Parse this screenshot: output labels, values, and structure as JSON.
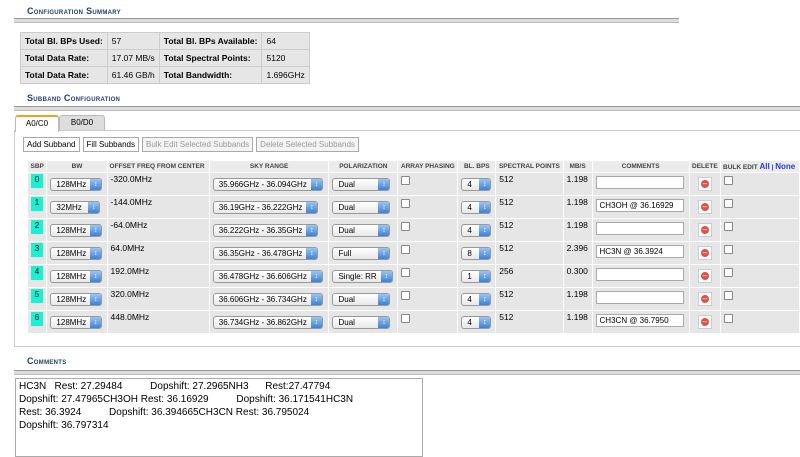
{
  "summary": {
    "title": "Configuration Summary",
    "rows": [
      [
        "Total Bl. BPs Used:",
        "57",
        "Total Bl. BPs Available:",
        "64"
      ],
      [
        "Total Data Rate:",
        "17.07 MB/s",
        "Total Spectral Points:",
        "5120"
      ],
      [
        "Total Data Rate:",
        "61.46 GB/h",
        "Total Bandwidth:",
        "1.696GHz"
      ]
    ]
  },
  "subband": {
    "title": "Subband Configuration",
    "tabs": [
      "A0/C0",
      "B0/D0"
    ],
    "active_tab": "A0/C0",
    "buttons": {
      "add": "Add Subband",
      "fill": "Fill Subbands",
      "bulk": "Bulk Edit Selected Subbands",
      "delete": "Delete Selected Subbands"
    },
    "headers": {
      "sbp": "SBP",
      "bw": "BW",
      "offset": "OFFSET FREQ FROM CENTER",
      "sky": "SKY RANGE",
      "pol": "POLARIZATION",
      "phasing": "ARRAY PHASING",
      "bps": "BL. BPS",
      "points": "SPECTRAL POINTS",
      "mbs": "MB/S",
      "comments": "COMMENTS",
      "delete": "DELETE",
      "bulk": "BULK EDIT",
      "all": "All",
      "sep": "|",
      "none": "None"
    },
    "rows": [
      {
        "sbp": "0",
        "bw": "128MHz",
        "offset": "-320.0MHz",
        "sky": "35.966GHz - 36.094GHz",
        "pol": "Dual",
        "bps": "4",
        "points": "512",
        "mbs": "1.198",
        "comment": ""
      },
      {
        "sbp": "1",
        "bw": "32MHz",
        "offset": "-144.0MHz",
        "sky": "36.19GHz - 36.222GHz",
        "pol": "Dual",
        "bps": "4",
        "points": "512",
        "mbs": "1.198",
        "comment": "CH3OH @ 36.16929"
      },
      {
        "sbp": "2",
        "bw": "128MHz",
        "offset": "-64.0MHz",
        "sky": "36.222GHz - 36.35GHz",
        "pol": "Dual",
        "bps": "4",
        "points": "512",
        "mbs": "1.198",
        "comment": ""
      },
      {
        "sbp": "3",
        "bw": "128MHz",
        "offset": "64.0MHz",
        "sky": "36.35GHz - 36.478GHz",
        "pol": "Full",
        "bps": "8",
        "points": "512",
        "mbs": "2.396",
        "comment": "HC3N @ 36.3924"
      },
      {
        "sbp": "4",
        "bw": "128MHz",
        "offset": "192.0MHz",
        "sky": "36.478GHz - 36.606GHz",
        "pol": "Single: RR",
        "bps": "1",
        "points": "256",
        "mbs": "0.300",
        "comment": ""
      },
      {
        "sbp": "5",
        "bw": "128MHz",
        "offset": "320.0MHz",
        "sky": "36.606GHz - 36.734GHz",
        "pol": "Dual",
        "bps": "4",
        "points": "512",
        "mbs": "1.198",
        "comment": ""
      },
      {
        "sbp": "6",
        "bw": "128MHz",
        "offset": "448.0MHz",
        "sky": "36.734GHz - 36.862GHz",
        "pol": "Dual",
        "bps": "4",
        "points": "512",
        "mbs": "1.198",
        "comment": "CH3CN @ 36.7950"
      }
    ]
  },
  "comments": {
    "title": "Comments",
    "text": "HC3N   Rest: 27.29484          Dopshift: 27.2965NH3      Rest:27.47794\nDopshift: 27.47965CH3OH Rest: 36.16929          Dopshift: 36.171541HC3N\nRest: 36.3924          Dopshift: 36.394665CH3CN Rest: 36.795024\nDopshift: 36.797314"
  },
  "colors": {
    "sbp_badge": "#19f0d4",
    "title": "#1f3e6e",
    "tab_accent": "#f0a020"
  }
}
